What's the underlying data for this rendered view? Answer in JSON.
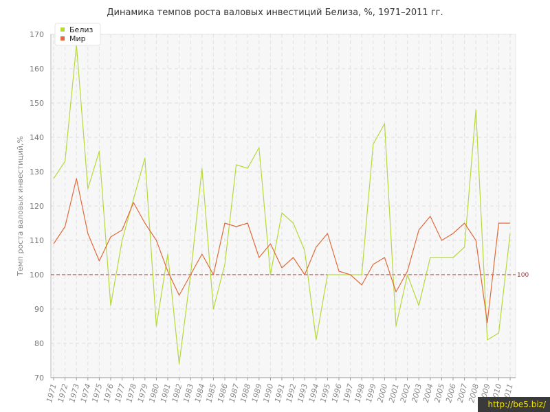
{
  "watermark": "http://be5.biz/",
  "chart_data": {
    "type": "line",
    "title": "Динамика темпов роста валовых инвестиций Белиза, %, 1971–2011 гг.",
    "ylabel": "Темп роста валовых инвестиций,%",
    "xlabel": "",
    "ylim": [
      70,
      170
    ],
    "yticks": [
      70,
      80,
      90,
      100,
      110,
      120,
      130,
      140,
      150,
      160,
      170
    ],
    "grid": true,
    "legend_position": "top-left",
    "reference_line": {
      "value": 100,
      "label": "100",
      "color": "#8b3a3a"
    },
    "x": [
      "1971",
      "1972",
      "1973",
      "1974",
      "1975",
      "1976",
      "1977",
      "1978",
      "1979",
      "1980",
      "1981",
      "1982",
      "1983",
      "1984",
      "1985",
      "1986",
      "1987",
      "1988",
      "1989",
      "1990",
      "1991",
      "1992",
      "1993",
      "1994",
      "1995",
      "1996",
      "1997",
      "1998",
      "1999",
      "2000",
      "2001",
      "2002",
      "2003",
      "2004",
      "2005",
      "2006",
      "2007",
      "2008",
      "2009",
      "2010",
      "2011"
    ],
    "series": [
      {
        "name": "Белиз",
        "color": "#b5d93a",
        "values": [
          128,
          133,
          167,
          125,
          136,
          91,
          110,
          122,
          134,
          85,
          106,
          74,
          100,
          131,
          90,
          103,
          132,
          131,
          137,
          100,
          118,
          115,
          107,
          81,
          100,
          100,
          100,
          100,
          138,
          144,
          85,
          100,
          91,
          105,
          105,
          105,
          108,
          148,
          81,
          83,
          112
        ]
      },
      {
        "name": "Мир",
        "color": "#e06a3b",
        "values": [
          109,
          114,
          128,
          112,
          104,
          111,
          113,
          121,
          115,
          110,
          101,
          94,
          100,
          106,
          100,
          115,
          114,
          115,
          105,
          109,
          102,
          105,
          100,
          108,
          112,
          101,
          100,
          97,
          103,
          105,
          95,
          101,
          113,
          117,
          110,
          112,
          115,
          110,
          86,
          115,
          115
        ]
      }
    ]
  }
}
